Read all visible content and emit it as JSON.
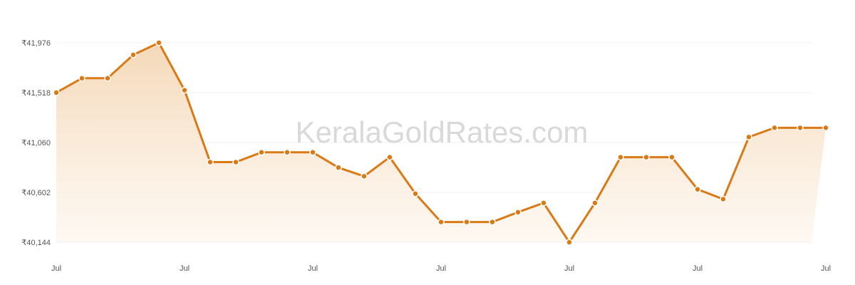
{
  "watermark": "KeralaGoldRates.com",
  "chart_data": {
    "type": "area",
    "title": "",
    "xlabel": "",
    "ylabel": "",
    "ylim": [
      40144,
      41976
    ],
    "yticks": [
      "₹40,144",
      "₹40,602",
      "₹41,060",
      "₹41,518",
      "₹41,976"
    ],
    "ytick_values": [
      40144,
      40602,
      41060,
      41518,
      41976
    ],
    "xticks": [
      "Jul",
      "Jul",
      "Jul",
      "Jul",
      "Jul",
      "Jul",
      "Jul"
    ],
    "grid": true,
    "colors": {
      "line": "#d97a17",
      "fill_top": "#f3d2ac",
      "fill_bottom": "#fdf4ea",
      "marker_fill": "#d97a17",
      "marker_stroke": "#ffffff",
      "grid": "#f0f0f0"
    },
    "series": [
      {
        "values": [
          41518,
          41650,
          41650,
          41865,
          41976,
          41540,
          40880,
          40880,
          40970,
          40970,
          40970,
          40830,
          40750,
          40925,
          40590,
          40330,
          40330,
          40330,
          40420,
          40505,
          40144,
          40505,
          40925,
          40925,
          40925,
          40630,
          40540,
          41110,
          41195,
          41195,
          41195
        ]
      }
    ]
  }
}
